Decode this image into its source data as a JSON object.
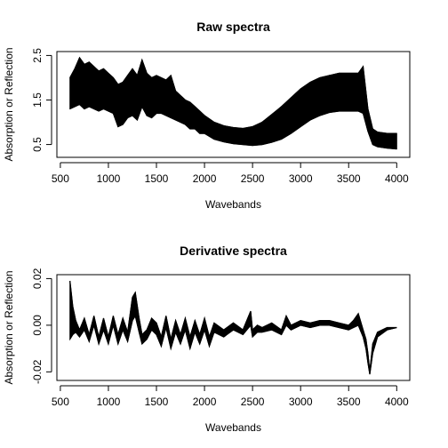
{
  "chart_data": [
    {
      "type": "line",
      "title": "Raw spectra",
      "xlabel": "Wavebands",
      "ylabel": "Absorption or Reflection",
      "x_ticks": [
        500,
        1000,
        1500,
        2000,
        2500,
        3000,
        3500,
        4000
      ],
      "y_ticks": [
        0.5,
        1.5,
        2.5
      ],
      "y_tick_labels": [
        "0.5",
        "1.5",
        "2.5"
      ],
      "xlim": [
        600,
        4000
      ],
      "ylim": [
        0.3,
        2.5
      ],
      "grid": false,
      "legend": "none",
      "num_series": "many (overlapping spectra)",
      "series": [
        {
          "x": [
            600,
            650,
            700,
            750,
            800,
            850,
            900,
            950,
            1000,
            1050,
            1100,
            1150,
            1200,
            1250,
            1300,
            1350,
            1400,
            1450,
            1500,
            1550,
            1600,
            1650,
            1700,
            1750,
            1800,
            1850,
            1900,
            1950,
            2000,
            2100,
            2200,
            2300,
            2400,
            2500,
            2600,
            2700,
            2800,
            2900,
            3000,
            3100,
            3200,
            3300,
            3400,
            3500,
            3600,
            3650,
            3700,
            3750,
            3800,
            3900,
            4000
          ],
          "values": [
            1.3,
            1.35,
            1.4,
            1.3,
            1.35,
            1.3,
            1.25,
            1.3,
            1.25,
            1.2,
            0.9,
            0.95,
            1.1,
            1.15,
            1.05,
            1.35,
            1.15,
            1.1,
            1.2,
            1.2,
            1.15,
            1.1,
            1.05,
            1.0,
            0.95,
            0.85,
            0.85,
            0.75,
            0.75,
            0.62,
            0.56,
            0.52,
            0.5,
            0.48,
            0.5,
            0.55,
            0.62,
            0.75,
            0.9,
            1.05,
            1.15,
            1.22,
            1.25,
            1.25,
            1.25,
            1.2,
            0.8,
            0.5,
            0.45,
            0.42,
            0.4
          ]
        },
        {
          "x": [
            600,
            650,
            700,
            750,
            800,
            850,
            900,
            950,
            1000,
            1050,
            1100,
            1150,
            1200,
            1250,
            1300,
            1350,
            1400,
            1450,
            1500,
            1550,
            1600,
            1650,
            1700,
            1750,
            1800,
            1850,
            1900,
            1950,
            2000,
            2100,
            2200,
            2300,
            2400,
            2500,
            2600,
            2700,
            2800,
            2900,
            3000,
            3100,
            3200,
            3300,
            3400,
            3500,
            3600,
            3650,
            3700,
            3750,
            3800,
            3900,
            4000
          ],
          "values": [
            2.0,
            2.2,
            2.45,
            2.3,
            2.35,
            2.25,
            2.15,
            2.2,
            2.1,
            2.0,
            1.85,
            1.9,
            2.05,
            2.2,
            2.05,
            2.4,
            2.1,
            2.0,
            2.05,
            2.0,
            1.95,
            2.05,
            1.7,
            1.6,
            1.5,
            1.45,
            1.35,
            1.25,
            1.15,
            1.0,
            0.92,
            0.88,
            0.86,
            0.9,
            1.0,
            1.15,
            1.35,
            1.55,
            1.75,
            1.9,
            2.0,
            2.05,
            2.1,
            2.1,
            2.1,
            2.25,
            1.3,
            0.85,
            0.78,
            0.75,
            0.75
          ]
        },
        {
          "x": [
            1050,
            1150,
            1250,
            1350,
            1450,
            1550,
            1650,
            1750,
            1850,
            1950,
            2050,
            2200,
            2400,
            2600,
            2800,
            3000,
            3200,
            3300,
            3400,
            3500,
            3600,
            3650
          ],
          "values": [
            1.2,
            1.1,
            1.3,
            1.6,
            1.5,
            1.45,
            1.3,
            1.05,
            0.95,
            0.8,
            0.7,
            0.68,
            0.75,
            1.0,
            1.35,
            1.7,
            1.98,
            2.05,
            2.05,
            2.05,
            2.0,
            1.95
          ]
        }
      ]
    },
    {
      "type": "line",
      "title": "Derivative spectra",
      "xlabel": "Wavebands",
      "ylabel": "Absorption or Reflection",
      "x_ticks": [
        500,
        1000,
        1500,
        2000,
        2500,
        3000,
        3500,
        4000
      ],
      "y_ticks": [
        -0.02,
        0.0,
        0.02
      ],
      "y_tick_labels": [
        "-0.02",
        "0.00",
        "0.02"
      ],
      "xlim": [
        600,
        4000
      ],
      "ylim": [
        -0.022,
        0.02
      ],
      "grid": false,
      "legend": "none",
      "num_series": "many (overlapping spectra)",
      "series": [
        {
          "x": [
            600,
            630,
            660,
            700,
            750,
            800,
            850,
            900,
            950,
            1000,
            1050,
            1100,
            1150,
            1200,
            1250,
            1280,
            1320,
            1350,
            1400,
            1450,
            1500,
            1550,
            1600,
            1650,
            1700,
            1750,
            1800,
            1850,
            1900,
            1950,
            2000,
            2050,
            2100,
            2200,
            2300,
            2400,
            2480,
            2500,
            2550,
            2600,
            2700,
            2800,
            2850,
            2900,
            3000,
            3100,
            3200,
            3300,
            3400,
            3500,
            3550,
            3600,
            3650,
            3680,
            3700,
            3720,
            3750,
            3800,
            3900,
            4000
          ],
          "values": [
            0.019,
            0.008,
            0.002,
            -0.002,
            0.003,
            -0.004,
            0.004,
            -0.005,
            0.003,
            -0.005,
            0.004,
            -0.004,
            0.003,
            -0.003,
            0.012,
            0.014,
            0.003,
            -0.004,
            -0.002,
            0.003,
            0.001,
            -0.005,
            0.004,
            -0.006,
            0.002,
            -0.004,
            0.003,
            -0.005,
            0.002,
            -0.004,
            0.003,
            -0.005,
            0.001,
            -0.002,
            0.001,
            -0.002,
            0.006,
            -0.002,
            0.0,
            -0.001,
            0.001,
            -0.002,
            0.004,
            0.0,
            0.002,
            0.001,
            0.002,
            0.002,
            0.001,
            0.0,
            0.002,
            0.005,
            -0.002,
            -0.006,
            -0.012,
            -0.02,
            -0.008,
            -0.003,
            -0.001,
            -0.001
          ]
        },
        {
          "x": [
            600,
            630,
            660,
            700,
            750,
            800,
            850,
            900,
            950,
            1000,
            1050,
            1100,
            1150,
            1200,
            1250,
            1280,
            1320,
            1350,
            1400,
            1450,
            1500,
            1550,
            1600,
            1650,
            1700,
            1750,
            1800,
            1850,
            1900,
            1950,
            2000,
            2050,
            2100,
            2200,
            2300,
            2400,
            2480,
            2500,
            2550,
            2600,
            2700,
            2800,
            2850,
            2900,
            3000,
            3100,
            3200,
            3300,
            3400,
            3500,
            3550,
            3600,
            3650,
            3680,
            3700,
            3720,
            3750,
            3800,
            3900,
            4000
          ],
          "values": [
            -0.006,
            -0.004,
            -0.003,
            -0.005,
            -0.002,
            -0.007,
            0.0,
            -0.008,
            -0.002,
            -0.008,
            0.0,
            -0.008,
            -0.002,
            -0.007,
            0.002,
            0.004,
            -0.003,
            -0.008,
            -0.006,
            -0.002,
            -0.004,
            -0.009,
            -0.001,
            -0.01,
            -0.003,
            -0.008,
            -0.002,
            -0.01,
            -0.003,
            -0.008,
            -0.002,
            -0.009,
            -0.003,
            -0.005,
            -0.002,
            -0.004,
            0.0,
            -0.005,
            -0.003,
            -0.003,
            -0.002,
            -0.004,
            0.0,
            -0.002,
            0.0,
            -0.001,
            0.0,
            0.0,
            -0.001,
            -0.002,
            -0.001,
            0.0,
            -0.005,
            -0.01,
            -0.016,
            -0.021,
            -0.012,
            -0.005,
            -0.002,
            -0.001
          ]
        }
      ]
    }
  ]
}
